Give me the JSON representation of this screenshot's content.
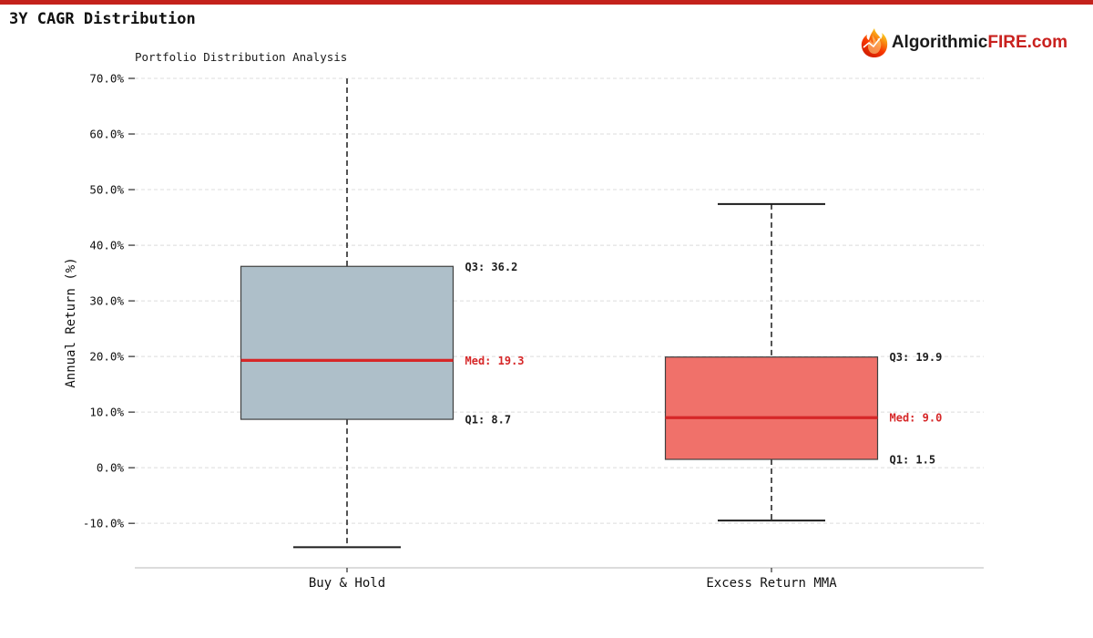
{
  "page": {
    "title": "3Y CAGR Distribution",
    "top_bar_color": "#c4221c",
    "brand": {
      "dark": "Algorithmic",
      "red": "FIRE.com"
    }
  },
  "chart_data": {
    "type": "boxplot",
    "title": "Portfolio Distribution Analysis",
    "ylabel": "Annual Return (%)",
    "ylim": [
      -18,
      70
    ],
    "yticks": [
      70,
      60,
      50,
      40,
      30,
      20,
      10,
      0,
      -10
    ],
    "ytick_labels": [
      "70.0%",
      "60.0%",
      "50.0%",
      "40.0%",
      "30.0%",
      "20.0%",
      "10.0%",
      "0.0%",
      "-10.0%"
    ],
    "grid": "horizontal dashed, light gray",
    "legend": "none",
    "categories": [
      "Buy & Hold",
      "Excess Return MMA"
    ],
    "series": [
      {
        "name": "Buy & Hold",
        "q1": 8.7,
        "median": 19.3,
        "q3": 36.2,
        "whisker_low": -14.3,
        "whisker_high": 70,
        "whisker_high_clipped": true,
        "box_color": "#aebfc9",
        "labels": {
          "q3": "Q3: 36.2",
          "med": "Med: 19.3",
          "q1": "Q1: 8.7"
        }
      },
      {
        "name": "Excess Return MMA",
        "q1": 1.5,
        "median": 9.0,
        "q3": 19.9,
        "whisker_low": -9.5,
        "whisker_high": 47.4,
        "whisker_high_clipped": false,
        "box_color": "#f0716a",
        "labels": {
          "q3": "Q3: 19.9",
          "med": "Med: 9.0",
          "q1": "Q1: 1.5"
        }
      }
    ],
    "colors": {
      "median_line": "#d62728",
      "median_label": "#d62728",
      "quartile_label": "#1d1d1d",
      "box_edge": "#3f3f3f",
      "whisker": "#1c1c1c",
      "grid": "#dcdcdc",
      "spine": "#c8c8c8",
      "tick": "#2b2b2b",
      "tick_label": "#111111"
    }
  }
}
